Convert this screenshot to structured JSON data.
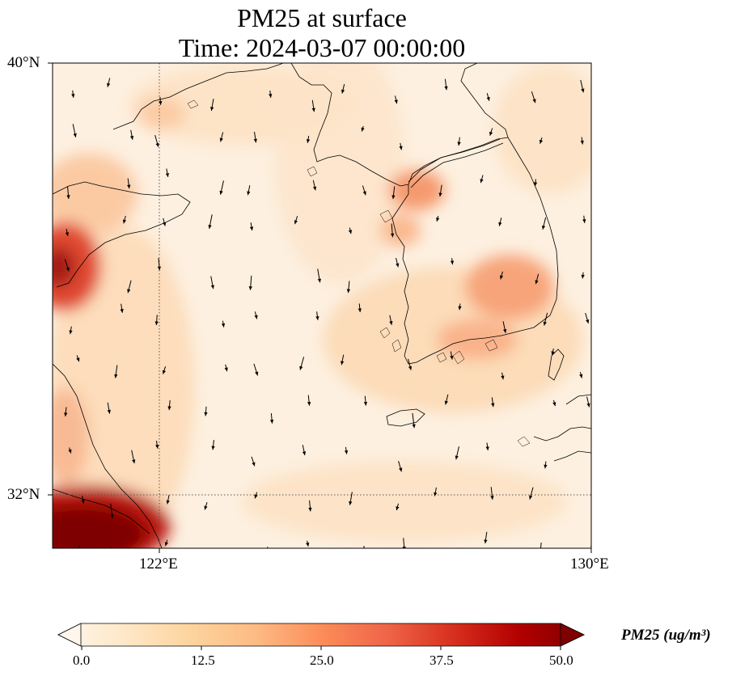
{
  "title": {
    "line1": "PM25 at surface",
    "line2": "Time: 2024-03-07 00:00:00"
  },
  "axes": {
    "lat_labels": [
      "40°N",
      "32°N"
    ],
    "lon_labels": [
      "122°E",
      "130°E"
    ],
    "extent": {
      "lon_min": 120,
      "lon_max": 130,
      "lat_min": 31,
      "lat_max": 40
    },
    "gridlines": {
      "lon": [
        122
      ],
      "lat": [
        32
      ],
      "style": "dotted"
    }
  },
  "colorbar": {
    "label": "PM25 (ug/m³)",
    "ticks": [
      "0.0",
      "12.5",
      "25.0",
      "37.5",
      "50.0"
    ],
    "range": [
      0,
      50
    ],
    "colormap": "OrRd",
    "colors": [
      "#fff7ec",
      "#fee8c8",
      "#fdd49e",
      "#fdbb84",
      "#fc8d59",
      "#ef6548",
      "#d7301f",
      "#b30000",
      "#7f0000"
    ],
    "extend": "both"
  },
  "pm25_hotspots": [
    {
      "lon": 120.3,
      "lat": 31.3,
      "value": 50
    },
    {
      "lon": 120.3,
      "lat": 36.2,
      "value": 42
    },
    {
      "lon": 127.0,
      "lat": 37.6,
      "value": 26
    },
    {
      "lon": 128.8,
      "lat": 35.9,
      "value": 22
    },
    {
      "lon": 127.8,
      "lat": 34.9,
      "value": 18
    },
    {
      "lon": 120.6,
      "lat": 37.6,
      "value": 16
    }
  ],
  "wind_field": {
    "dominant_direction": "north-northwest"
  }
}
